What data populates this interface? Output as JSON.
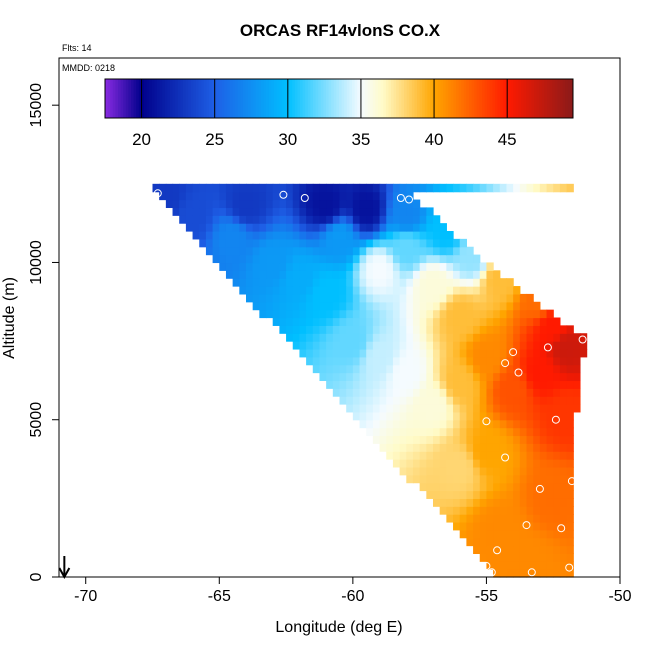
{
  "chart_data": {
    "type": "heatmap",
    "title": "ORCAS RF14vlonS CO.X",
    "flights_label": "Flts: 14",
    "date_label": "MMDD: 0218",
    "xlabel": "Longitude (deg E)",
    "ylabel": "Altitude (m)",
    "xlim": [
      -71,
      -50
    ],
    "ylim": [
      0,
      16500
    ],
    "xticks": [
      -70,
      -65,
      -60,
      -55,
      -50
    ],
    "xtick_labels": [
      "-70",
      "-65",
      "-60",
      "-55",
      "-50"
    ],
    "yticks": [
      0,
      5000,
      10000,
      15000
    ],
    "ytick_labels": [
      "0",
      "5000",
      "10000",
      "15000"
    ],
    "colorbar": {
      "range": [
        17.5,
        49.5
      ],
      "ticks": [
        20,
        25,
        30,
        35,
        40,
        45
      ],
      "tick_labels": [
        "20",
        "25",
        "30",
        "35",
        "40",
        "45"
      ],
      "stops": [
        [
          17.5,
          "#8a2be2"
        ],
        [
          20,
          "#00008b"
        ],
        [
          25,
          "#1e5fe6"
        ],
        [
          30,
          "#00bfff"
        ],
        [
          35,
          "#f5fbff"
        ],
        [
          36.5,
          "#fffbc8"
        ],
        [
          40,
          "#ffa500"
        ],
        [
          45,
          "#ff1a00"
        ],
        [
          49.5,
          "#8b1a1a"
        ]
      ]
    },
    "field_domain": {
      "top_altitude": 12300,
      "left_lon_at_top": -67.5,
      "left_lon_at_bottom": -54.6,
      "right_edge": [
        [
          12300,
          -58.0
        ],
        [
          10000,
          -55.0
        ],
        [
          8000,
          -52.0
        ],
        [
          7600,
          -51.3
        ],
        [
          4000,
          -51.8
        ],
        [
          0,
          -51.8
        ]
      ]
    },
    "value_anchors": [
      [
        -67,
        12000,
        23
      ],
      [
        -64,
        11800,
        23
      ],
      [
        -61,
        11800,
        21
      ],
      [
        -59.5,
        11700,
        21
      ],
      [
        -58,
        11500,
        27
      ],
      [
        -56.5,
        11000,
        30
      ],
      [
        -55.5,
        10200,
        33
      ],
      [
        -54.5,
        9500,
        39
      ],
      [
        -53,
        8800,
        42
      ],
      [
        -52.5,
        8000,
        45
      ],
      [
        -52,
        7300,
        47
      ],
      [
        -53,
        6500,
        45
      ],
      [
        -52,
        5200,
        44
      ],
      [
        -52.5,
        2500,
        42
      ],
      [
        -53.5,
        500,
        41
      ],
      [
        -54.5,
        1500,
        41
      ],
      [
        -56,
        3500,
        38
      ],
      [
        -57,
        5500,
        36
      ],
      [
        -58,
        6500,
        35
      ],
      [
        -59,
        7000,
        34
      ],
      [
        -60,
        7500,
        32
      ],
      [
        -61,
        9000,
        30
      ],
      [
        -62,
        9500,
        29
      ],
      [
        -63,
        10000,
        28
      ],
      [
        -64.5,
        10800,
        27
      ],
      [
        -66,
        11500,
        24
      ],
      [
        -57,
        9300,
        36
      ],
      [
        -56,
        8300,
        39
      ],
      [
        -55,
        7000,
        41
      ],
      [
        -56,
        6200,
        39
      ],
      [
        -54,
        6000,
        43
      ],
      [
        -55,
        4000,
        40
      ],
      [
        -59,
        9800,
        35
      ],
      [
        -58,
        10500,
        32
      ],
      [
        -60.5,
        10800,
        28
      ]
    ],
    "observation_points": [
      [
        -67.3,
        12200
      ],
      [
        -62.6,
        12150
      ],
      [
        -61.8,
        12050
      ],
      [
        -58.2,
        12050
      ],
      [
        -57.9,
        12000
      ],
      [
        -51.4,
        7550
      ],
      [
        -52.7,
        7300
      ],
      [
        -54.0,
        7150
      ],
      [
        -54.3,
        6800
      ],
      [
        -53.8,
        6500
      ],
      [
        -55.0,
        4950
      ],
      [
        -52.4,
        5000
      ],
      [
        -54.3,
        3800
      ],
      [
        -53.0,
        2800
      ],
      [
        -51.8,
        3050
      ],
      [
        -53.5,
        1650
      ],
      [
        -52.2,
        1550
      ],
      [
        -54.6,
        850
      ],
      [
        -55.0,
        350
      ],
      [
        -54.8,
        150
      ],
      [
        -53.3,
        150
      ],
      [
        -51.9,
        300
      ]
    ],
    "arrow": {
      "lon": -70.8,
      "direction": "down"
    }
  }
}
